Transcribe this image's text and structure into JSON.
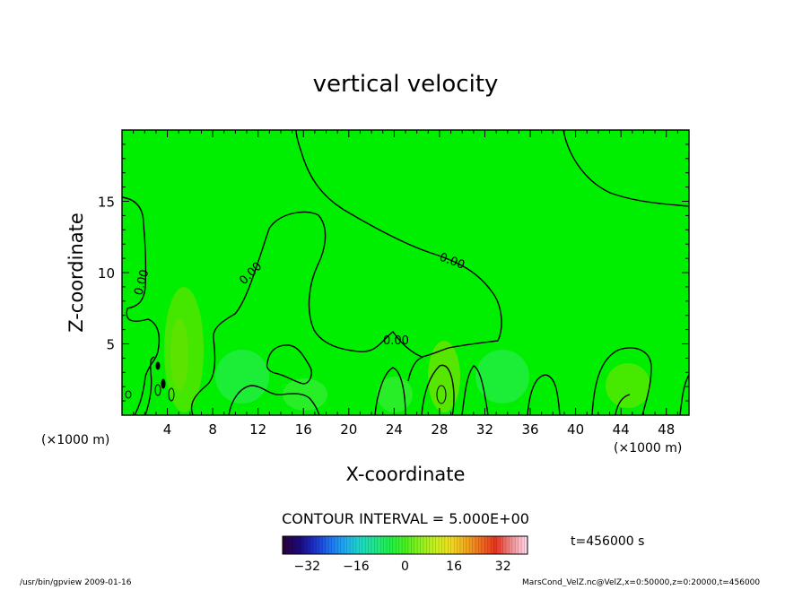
{
  "chart_data": {
    "type": "heatmap",
    "title": "vertical velocity",
    "xlabel": "X-coordinate",
    "ylabel": "Z-coordinate",
    "x_unit": "(×1000 m)",
    "y_unit": "(×1000 m)",
    "xlim": [
      0,
      50
    ],
    "ylim": [
      0,
      20
    ],
    "x_ticks": [
      4,
      8,
      12,
      16,
      20,
      24,
      28,
      32,
      36,
      40,
      44,
      48
    ],
    "y_ticks": [
      5,
      10,
      15
    ],
    "background_color": "#00ee00",
    "contour_interval_text": "CONTOUR INTERVAL = 5.000E+00",
    "contour_labels": [
      "0.00",
      "0.00",
      "0.00",
      "0.00"
    ],
    "colorbar": {
      "ticks": [
        -32,
        -16,
        0,
        16,
        32
      ],
      "min": -40,
      "max": 40,
      "colors": [
        "#2b0040",
        "#1a0a7a",
        "#1e2fc8",
        "#1e6ef0",
        "#1eaaf0",
        "#1ed7c8",
        "#1ee68c",
        "#1ef046",
        "#46f01e",
        "#8cf01e",
        "#c8f01e",
        "#f0dc1e",
        "#f0aa1e",
        "#f06e1e",
        "#e6321e",
        "#f08c8c",
        "#ffd2e6"
      ]
    }
  },
  "time_label": "t=456000 s",
  "footer": {
    "left": "/usr/bin/gpview   2009-01-16",
    "right": "MarsCond_VelZ.nc@VelZ,x=0:50000,z=0:20000,t=456000"
  }
}
